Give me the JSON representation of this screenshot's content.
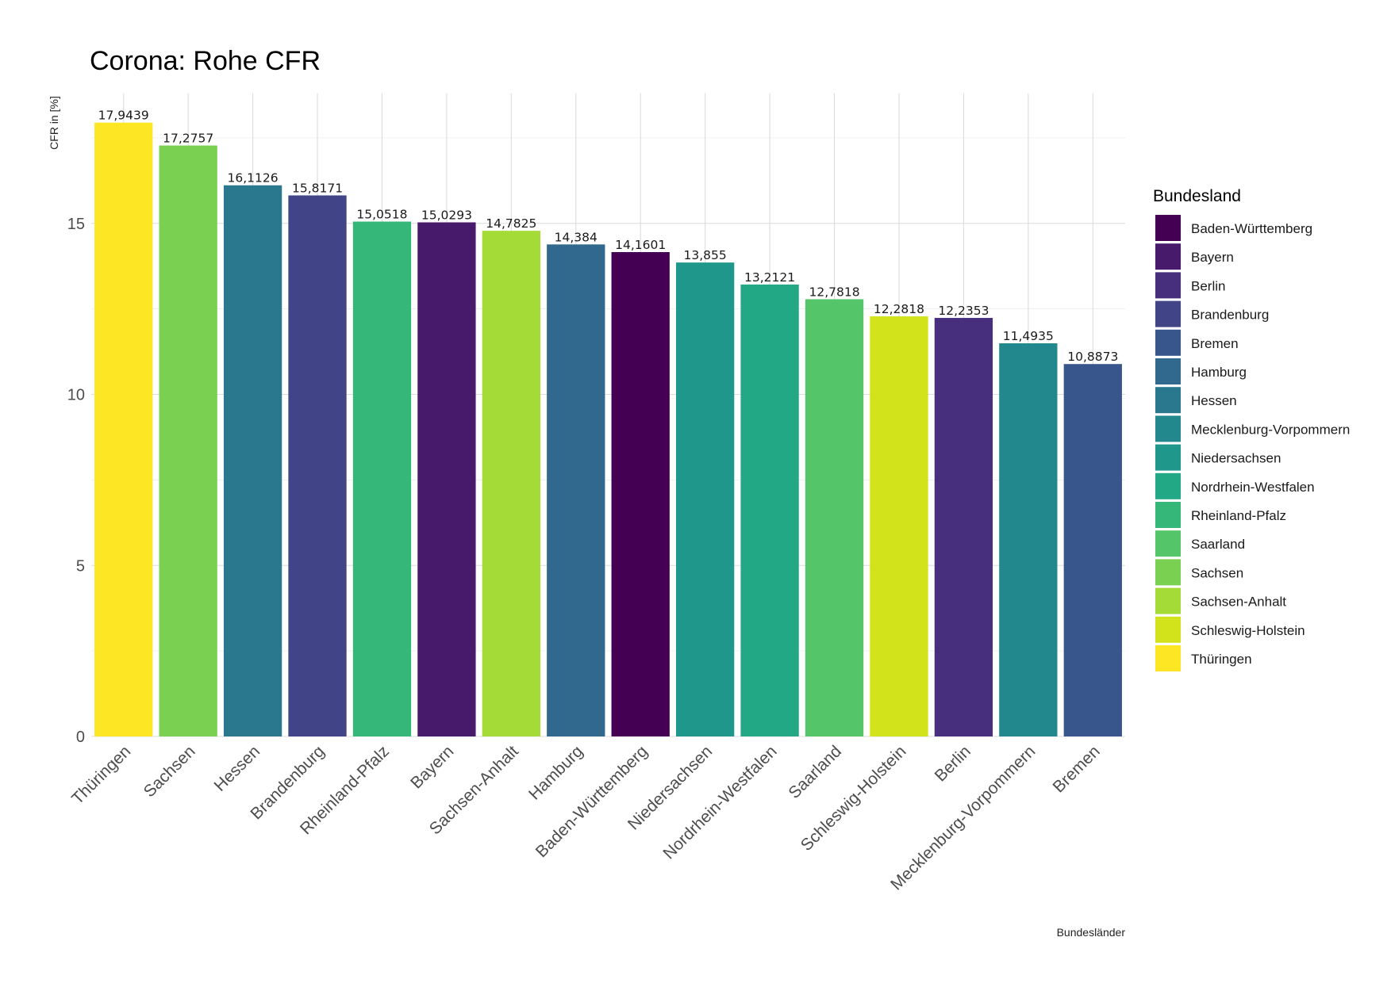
{
  "chart_data": {
    "type": "bar",
    "title": "Corona: Rohe CFR",
    "xlabel": "Bundesländer",
    "ylabel": "CFR in [%]",
    "ylim": [
      0,
      18.8
    ],
    "yticks": [
      0,
      5,
      10,
      15
    ],
    "grid": true,
    "legend_position": "right",
    "legend_title": "Bundesland",
    "categories": [
      "Thüringen",
      "Sachsen",
      "Hessen",
      "Brandenburg",
      "Rheinland-Pfalz",
      "Bayern",
      "Sachsen-Anhalt",
      "Hamburg",
      "Baden-Württemberg",
      "Niedersachsen",
      "Nordrhein-Westfalen",
      "Saarland",
      "Schleswig-Holstein",
      "Berlin",
      "Mecklenburg-Vorpommern",
      "Bremen"
    ],
    "values": [
      17.9439,
      17.2757,
      16.1126,
      15.8171,
      15.0518,
      15.0293,
      14.7825,
      14.384,
      14.1601,
      13.855,
      13.2121,
      12.7818,
      12.2818,
      12.2353,
      11.4935,
      10.8873
    ],
    "value_labels": [
      "17,9439",
      "17,2757",
      "16,1126",
      "15,8171",
      "15,0518",
      "15,0293",
      "14,7825",
      "14,384",
      "14,1601",
      "13,855",
      "13,2121",
      "12,7818",
      "12,2818",
      "12,2353",
      "11,4935",
      "10,8873"
    ],
    "legend": [
      {
        "name": "Baden-Württemberg",
        "color": "#440154"
      },
      {
        "name": "Bayern",
        "color": "#481A6C"
      },
      {
        "name": "Berlin",
        "color": "#472F7D"
      },
      {
        "name": "Brandenburg",
        "color": "#414487"
      },
      {
        "name": "Bremen",
        "color": "#39568C"
      },
      {
        "name": "Hamburg",
        "color": "#31688E"
      },
      {
        "name": "Hessen",
        "color": "#2A788E"
      },
      {
        "name": "Mecklenburg-Vorpommern",
        "color": "#23888E"
      },
      {
        "name": "Niedersachsen",
        "color": "#1F988B"
      },
      {
        "name": "Nordrhein-Westfalen",
        "color": "#22A884"
      },
      {
        "name": "Rheinland-Pfalz",
        "color": "#35B779"
      },
      {
        "name": "Saarland",
        "color": "#54C568"
      },
      {
        "name": "Sachsen",
        "color": "#7AD151"
      },
      {
        "name": "Sachsen-Anhalt",
        "color": "#A5DB36"
      },
      {
        "name": "Schleswig-Holstein",
        "color": "#D2E21B"
      },
      {
        "name": "Thüringen",
        "color": "#FDE725"
      }
    ]
  }
}
